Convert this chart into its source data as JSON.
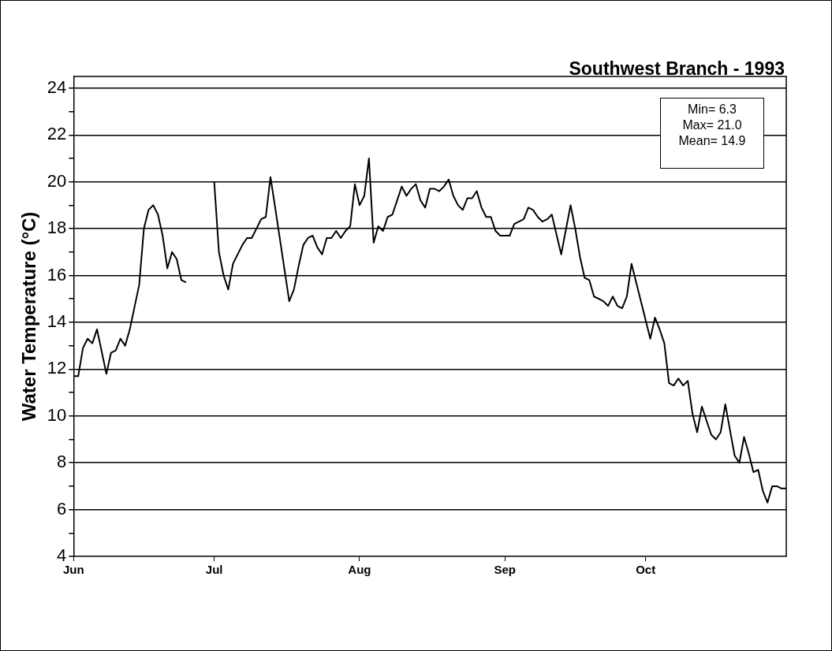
{
  "chart_data": {
    "type": "line",
    "title": "Southwest Branch - 1993",
    "ylabel": "Water Temperature (°C)",
    "annotations": [
      "Min= 6.3",
      "Max= 21.0",
      "Mean= 14.9"
    ],
    "x": [
      "1993-06-01",
      "1993-06-02",
      "1993-06-03",
      "1993-06-04",
      "1993-06-05",
      "1993-06-06",
      "1993-06-08",
      "1993-06-09",
      "1993-06-10",
      "1993-06-11",
      "1993-06-12",
      "1993-06-13",
      "1993-06-15",
      "1993-06-16",
      "1993-06-17",
      "1993-06-18",
      "1993-06-19",
      "1993-06-20",
      "1993-06-21",
      "1993-06-22",
      "1993-06-23",
      "1993-06-24",
      "1993-06-25",
      "1993-06-28",
      "1993-07-01",
      "1993-07-02",
      "1993-07-03",
      "1993-07-04",
      "1993-07-05",
      "1993-07-07",
      "1993-07-08",
      "1993-07-09",
      "1993-07-10",
      "1993-07-11",
      "1993-07-12",
      "1993-07-13",
      "1993-07-14",
      "1993-07-17",
      "1993-07-18",
      "1993-07-19",
      "1993-07-20",
      "1993-07-21",
      "1993-07-22",
      "1993-07-23",
      "1993-07-24",
      "1993-07-25",
      "1993-07-26",
      "1993-07-27",
      "1993-07-28",
      "1993-07-29",
      "1993-07-30",
      "1993-07-31",
      "1993-08-01",
      "1993-08-02",
      "1993-08-03",
      "1993-08-04",
      "1993-08-05",
      "1993-08-06",
      "1993-08-07",
      "1993-08-08",
      "1993-08-10",
      "1993-08-11",
      "1993-08-12",
      "1993-08-13",
      "1993-08-14",
      "1993-08-15",
      "1993-08-16",
      "1993-08-17",
      "1993-08-18",
      "1993-08-19",
      "1993-08-20",
      "1993-08-21",
      "1993-08-22",
      "1993-08-23",
      "1993-08-24",
      "1993-08-25",
      "1993-08-26",
      "1993-08-27",
      "1993-08-28",
      "1993-08-29",
      "1993-08-30",
      "1993-08-31",
      "1993-09-01",
      "1993-09-02",
      "1993-09-03",
      "1993-09-04",
      "1993-09-05",
      "1993-09-06",
      "1993-09-07",
      "1993-09-08",
      "1993-09-09",
      "1993-09-10",
      "1993-09-11",
      "1993-09-13",
      "1993-09-15",
      "1993-09-16",
      "1993-09-17",
      "1993-09-18",
      "1993-09-19",
      "1993-09-20",
      "1993-09-21",
      "1993-09-22",
      "1993-09-23",
      "1993-09-24",
      "1993-09-25",
      "1993-09-26",
      "1993-09-27",
      "1993-09-28",
      "1993-09-30",
      "1993-10-02",
      "1993-10-03",
      "1993-10-04",
      "1993-10-05",
      "1993-10-06",
      "1993-10-07",
      "1993-10-08",
      "1993-10-09",
      "1993-10-10",
      "1993-10-11",
      "1993-10-12",
      "1993-10-13",
      "1993-10-14",
      "1993-10-15",
      "1993-10-16",
      "1993-10-17",
      "1993-10-18",
      "1993-10-19",
      "1993-10-20",
      "1993-10-21",
      "1993-10-22",
      "1993-10-23",
      "1993-10-24",
      "1993-10-25",
      "1993-10-26",
      "1993-10-27",
      "1993-10-28",
      "1993-10-29",
      "1993-10-30",
      "1993-10-31"
    ],
    "values": [
      11.7,
      11.7,
      12.9,
      13.3,
      13.1,
      13.7,
      11.8,
      12.7,
      12.8,
      13.3,
      13.0,
      13.7,
      15.6,
      18.0,
      18.8,
      19.0,
      18.6,
      17.7,
      16.3,
      17.0,
      16.7,
      15.8,
      15.7,
      null,
      20.0,
      17.0,
      16.0,
      15.4,
      16.5,
      17.3,
      17.6,
      17.6,
      18.0,
      18.4,
      18.5,
      20.2,
      18.9,
      14.9,
      15.4,
      16.4,
      17.3,
      17.6,
      17.7,
      17.2,
      16.9,
      17.6,
      17.6,
      17.9,
      17.6,
      17.9,
      18.1,
      19.9,
      19.0,
      19.4,
      21.0,
      17.4,
      18.1,
      17.9,
      18.5,
      18.6,
      19.8,
      19.4,
      19.7,
      19.9,
      19.2,
      18.9,
      19.7,
      19.7,
      19.6,
      19.8,
      20.1,
      19.4,
      19.0,
      18.8,
      19.3,
      19.3,
      19.6,
      18.9,
      18.5,
      18.5,
      17.9,
      17.7,
      17.7,
      17.7,
      18.2,
      18.3,
      18.4,
      18.9,
      18.8,
      18.5,
      18.3,
      18.4,
      18.6,
      16.9,
      19.0,
      18.0,
      16.8,
      15.9,
      15.8,
      15.1,
      15.0,
      14.9,
      14.7,
      15.1,
      14.7,
      14.6,
      15.1,
      16.5,
      14.9,
      13.3,
      14.2,
      13.7,
      13.1,
      11.4,
      11.3,
      11.6,
      11.3,
      11.5,
      10.1,
      9.3,
      10.4,
      9.8,
      9.2,
      9.0,
      9.3,
      10.5,
      9.4,
      8.3,
      8.0,
      9.1,
      8.4,
      7.6,
      7.7,
      6.8,
      6.3,
      7.0,
      7.0,
      6.9,
      6.9
    ],
    "color": "#000000",
    "xlim": [
      "1993-06-01",
      "1993-10-31"
    ],
    "xticks": [
      {
        "value": "1993-06-01",
        "label": "Jun"
      },
      {
        "value": "1993-07-01",
        "label": "Jul"
      },
      {
        "value": "1993-08-01",
        "label": "Aug"
      },
      {
        "value": "1993-09-01",
        "label": "Sep"
      },
      {
        "value": "1993-10-01",
        "label": "Oct"
      }
    ],
    "ylim": [
      4,
      24.5
    ],
    "yticks": [
      4,
      {
        "value": 5,
        "label": null
      },
      6,
      {
        "value": 7,
        "label": null
      },
      8,
      {
        "value": 9,
        "label": null
      },
      10,
      {
        "value": 11,
        "label": null
      },
      12,
      {
        "value": 13,
        "label": null
      },
      14,
      {
        "value": 15,
        "label": null
      },
      16,
      {
        "value": 17,
        "label": null
      },
      18,
      {
        "value": 19,
        "label": null
      },
      20,
      {
        "value": 21,
        "label": null
      },
      22,
      {
        "value": 23,
        "label": null
      },
      24
    ],
    "grid": "y",
    "marker": "none",
    "line_style": "solid",
    "legend": false
  }
}
